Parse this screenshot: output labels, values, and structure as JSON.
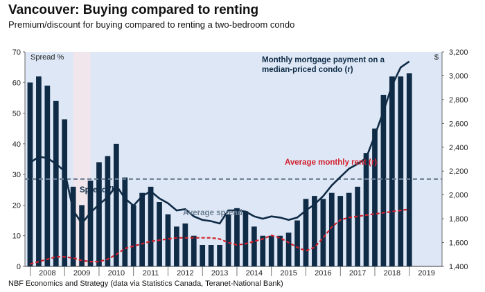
{
  "title": "Vancouver: Buying compared to renting",
  "subtitle": "Premium/discount for buying compared to renting a two-bedroom condo",
  "source": "NBF Economics and Strategy (data via Statistics Canada, Teranet-National Bank)",
  "chart_data": {
    "type": "bar",
    "left_axis_label": "Spread %",
    "right_axis_label": "$",
    "left_ticks": [
      0,
      10,
      20,
      30,
      40,
      50,
      60,
      70
    ],
    "right_ticks": [
      1400,
      1600,
      1800,
      2000,
      2200,
      2400,
      2600,
      2800,
      3000,
      3200
    ],
    "x_tick_labels": [
      "2008",
      "2009",
      "2010",
      "2011",
      "2012",
      "2013",
      "2014",
      "2015",
      "2016",
      "2017",
      "2018",
      "2019"
    ],
    "x_range": [
      2007.35,
      2019.45
    ],
    "left_ylim": [
      0,
      70
    ],
    "right_ylim": [
      1400,
      3200
    ],
    "shaded_recession": [
      2008.75,
      2009.25
    ],
    "bars": {
      "name": "Spread (l)",
      "x": [
        2007.5,
        2007.75,
        2008.0,
        2008.25,
        2008.5,
        2008.75,
        2009.0,
        2009.25,
        2009.5,
        2009.75,
        2010.0,
        2010.25,
        2010.5,
        2010.75,
        2011.0,
        2011.25,
        2011.5,
        2011.75,
        2012.0,
        2012.25,
        2012.5,
        2012.75,
        2013.0,
        2013.25,
        2013.5,
        2013.75,
        2014.0,
        2014.25,
        2014.5,
        2014.75,
        2015.0,
        2015.25,
        2015.5,
        2015.75,
        2016.0,
        2016.25,
        2016.5,
        2016.75,
        2017.0,
        2017.25,
        2017.5,
        2017.75,
        2018.0,
        2018.25,
        2018.5
      ],
      "values": [
        60,
        62,
        59,
        54,
        48,
        26,
        20,
        28,
        34,
        36,
        40,
        29,
        20,
        24,
        26,
        21,
        17,
        13,
        14,
        10,
        7,
        7,
        7,
        17,
        19,
        18,
        13,
        10,
        10,
        10,
        11,
        15,
        22,
        23,
        22,
        24,
        23,
        24,
        26,
        37,
        45,
        56,
        62,
        62,
        63
      ]
    },
    "average_spread": {
      "name": "Average spread",
      "value": 28.5
    },
    "mortgage": {
      "name": "Monthly mortgage payment on a median-priced condo (r)",
      "x": [
        2007.5,
        2007.75,
        2008.0,
        2008.25,
        2008.5,
        2008.75,
        2009.0,
        2009.25,
        2009.5,
        2009.75,
        2010.0,
        2010.25,
        2010.5,
        2010.75,
        2011.0,
        2011.25,
        2011.5,
        2011.75,
        2012.0,
        2012.25,
        2012.5,
        2012.75,
        2013.0,
        2013.25,
        2013.5,
        2013.75,
        2014.0,
        2014.25,
        2014.5,
        2014.75,
        2015.0,
        2015.25,
        2015.5,
        2015.75,
        2016.0,
        2016.25,
        2016.5,
        2016.75,
        2017.0,
        2017.25,
        2017.5,
        2017.75,
        2018.0,
        2018.25,
        2018.5
      ],
      "values": [
        2270,
        2320,
        2310,
        2260,
        2200,
        1870,
        1760,
        1850,
        1920,
        1980,
        2080,
        1970,
        1910,
        1990,
        2030,
        1970,
        1930,
        1870,
        1880,
        1820,
        1790,
        1780,
        1760,
        1870,
        1870,
        1860,
        1820,
        1800,
        1820,
        1810,
        1790,
        1810,
        1870,
        1920,
        1990,
        2080,
        2150,
        2220,
        2260,
        2310,
        2500,
        2700,
        2920,
        3070,
        3120
      ]
    },
    "rent": {
      "name": "Average monthly rent (r)",
      "x": [
        2007.5,
        2007.75,
        2008.0,
        2008.25,
        2008.5,
        2008.75,
        2009.0,
        2009.25,
        2009.5,
        2009.75,
        2010.0,
        2010.25,
        2010.5,
        2010.75,
        2011.0,
        2011.25,
        2011.5,
        2011.75,
        2012.0,
        2012.25,
        2012.5,
        2012.75,
        2013.0,
        2013.25,
        2013.5,
        2013.75,
        2014.0,
        2014.25,
        2014.5,
        2014.75,
        2015.0,
        2015.25,
        2015.5,
        2015.75,
        2016.0,
        2016.25,
        2016.5,
        2016.75,
        2017.0,
        2017.25,
        2017.5,
        2017.75,
        2018.0,
        2018.25,
        2018.5
      ],
      "values": [
        1420,
        1440,
        1460,
        1480,
        1480,
        1470,
        1450,
        1440,
        1440,
        1460,
        1500,
        1550,
        1570,
        1590,
        1610,
        1620,
        1630,
        1640,
        1640,
        1640,
        1640,
        1640,
        1630,
        1600,
        1580,
        1590,
        1610,
        1630,
        1660,
        1640,
        1600,
        1560,
        1530,
        1560,
        1640,
        1730,
        1790,
        1810,
        1820,
        1830,
        1840,
        1850,
        1860,
        1870,
        1880
      ]
    }
  }
}
